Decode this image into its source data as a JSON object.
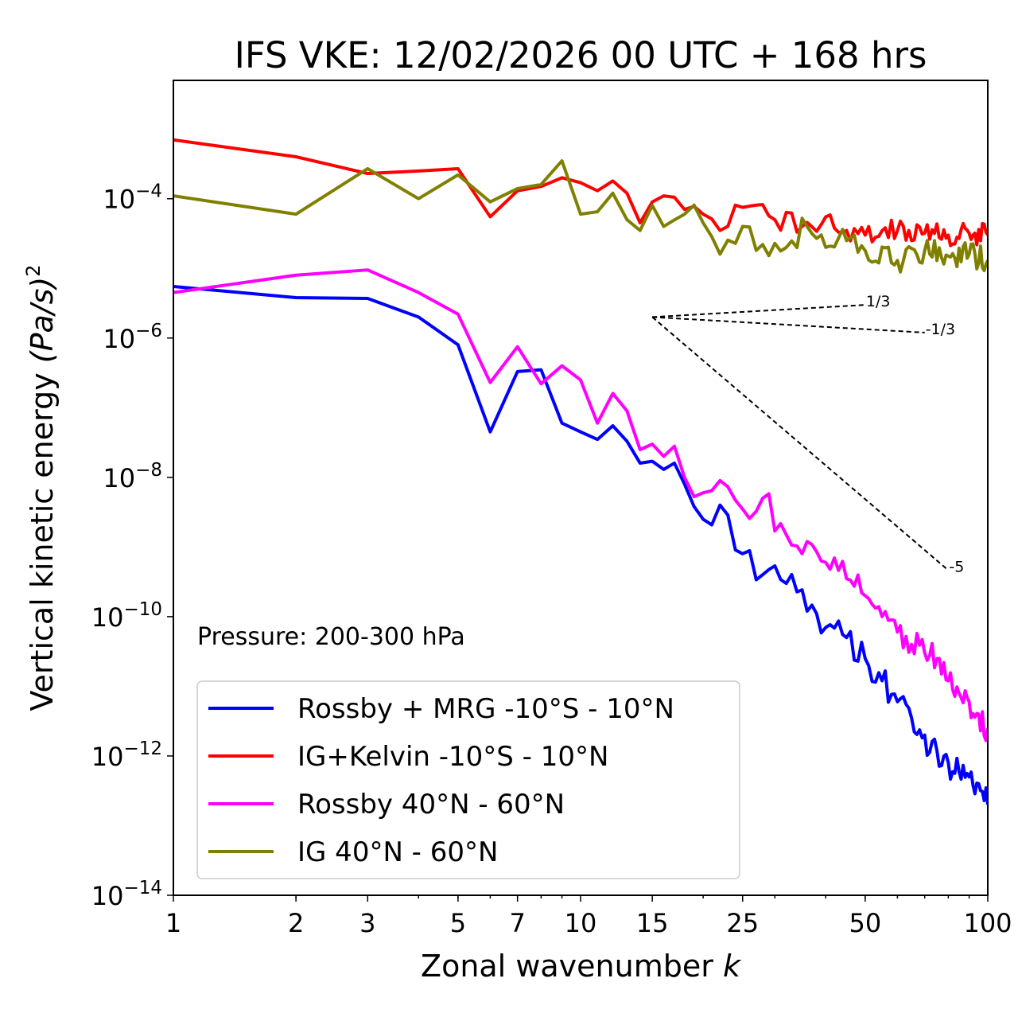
{
  "chart_data": {
    "type": "line",
    "title": "IFS VKE: 12/02/2026 00 UTC + 168 hrs",
    "xlabel": "Zonal wavenumber",
    "xlabel_var": "k",
    "ylabel": "Vertical kinetic energy",
    "ylabel_unit": "(Pa/s)",
    "ylabel_exp": "2",
    "xscale": "log",
    "yscale": "log",
    "xlim": [
      1,
      100
    ],
    "ylim": [
      1e-14,
      0.005
    ],
    "x_ticks": [
      1,
      2,
      3,
      5,
      7,
      10,
      15,
      25,
      50,
      100
    ],
    "x_tick_labels": [
      "1",
      "2",
      "3",
      "5",
      "7",
      "10",
      "15",
      "25",
      "50",
      "100"
    ],
    "y_ticks": [
      {
        "value": 0.0001,
        "base": "10",
        "exp": "−4"
      },
      {
        "value": 1e-06,
        "base": "10",
        "exp": "−6"
      },
      {
        "value": 1e-08,
        "base": "10",
        "exp": "−8"
      },
      {
        "value": 1e-10,
        "base": "10",
        "exp": "−10"
      },
      {
        "value": 1e-12,
        "base": "10",
        "exp": "−12"
      },
      {
        "value": 1e-14,
        "base": "10",
        "exp": "−14"
      }
    ],
    "annotation": "Pressure: 200-300 hPa",
    "legend_position": "lower-left",
    "reference_slopes": [
      {
        "label": "1/3",
        "slope": 0.3333,
        "x0": 15,
        "y0": 2e-06,
        "x1": 50
      },
      {
        "label": "-1/3",
        "slope": -0.3333,
        "x0": 15,
        "y0": 2e-06,
        "x1": 70
      },
      {
        "label": "-5",
        "slope": -5,
        "x0": 15,
        "y0": 2e-06,
        "x1": 80
      }
    ],
    "series": [
      {
        "name": "Rossby + MRG -10°S - 10°N",
        "color": "#0000ff",
        "anchors": [
          [
            1,
            5.5e-06
          ],
          [
            2,
            3.8e-06
          ],
          [
            3,
            3.7e-06
          ],
          [
            4,
            2e-06
          ],
          [
            5,
            8e-07
          ],
          [
            6,
            4.5e-08
          ],
          [
            7,
            3.3e-07
          ],
          [
            8,
            3.5e-07
          ],
          [
            9,
            6e-08
          ],
          [
            10,
            4.5e-08
          ],
          [
            11,
            3.5e-08
          ],
          [
            12,
            5.5e-08
          ],
          [
            13,
            3.3e-08
          ],
          [
            14,
            1.6e-08
          ],
          [
            15,
            1.7e-08
          ],
          [
            16,
            1.3e-08
          ],
          [
            17,
            1.6e-08
          ],
          [
            18,
            8e-09
          ],
          [
            20,
            2.5e-09
          ],
          [
            22,
            4e-09
          ],
          [
            25,
            8e-10
          ],
          [
            28,
            4e-10
          ],
          [
            32,
            3e-10
          ],
          [
            36,
            1.2e-10
          ],
          [
            40,
            7e-11
          ],
          [
            45,
            5e-11
          ],
          [
            50,
            2.5e-11
          ],
          [
            55,
            1.2e-11
          ],
          [
            60,
            6e-12
          ],
          [
            65,
            3.5e-12
          ],
          [
            70,
            2e-12
          ],
          [
            75,
            1.2e-12
          ],
          [
            80,
            8e-13
          ],
          [
            85,
            6e-13
          ],
          [
            90,
            5e-13
          ],
          [
            95,
            4e-13
          ],
          [
            100,
            2e-13
          ]
        ],
        "noise": 0.25
      },
      {
        "name": "IG+Kelvin -10°S - 10°N",
        "color": "#ff0000",
        "anchors": [
          [
            1,
            0.0007
          ],
          [
            2,
            0.0004
          ],
          [
            3,
            0.00023
          ],
          [
            4,
            0.00025
          ],
          [
            5,
            0.00027
          ],
          [
            6,
            5.5e-05
          ],
          [
            7,
            0.00013
          ],
          [
            8,
            0.00015
          ],
          [
            9,
            0.0002
          ],
          [
            10,
            0.00017
          ],
          [
            11,
            0.00013
          ],
          [
            12,
            0.00018
          ],
          [
            13,
            0.00012
          ],
          [
            14,
            4.5e-05
          ],
          [
            15,
            9e-05
          ],
          [
            16,
            0.00011
          ],
          [
            18,
            7e-05
          ],
          [
            20,
            6e-05
          ],
          [
            22,
            3.5e-05
          ],
          [
            25,
            7.5e-05
          ],
          [
            30,
            5e-05
          ],
          [
            35,
            4e-05
          ],
          [
            40,
            5.5e-05
          ],
          [
            45,
            3.5e-05
          ],
          [
            50,
            3e-05
          ],
          [
            60,
            3.5e-05
          ],
          [
            70,
            3.2e-05
          ],
          [
            80,
            3e-05
          ],
          [
            90,
            3.2e-05
          ],
          [
            100,
            3e-05
          ]
        ],
        "noise": 0.16
      },
      {
        "name": "Rossby 40°N - 60°N",
        "color": "#ff00ff",
        "anchors": [
          [
            1,
            4.5e-06
          ],
          [
            2,
            8e-06
          ],
          [
            3,
            9.5e-06
          ],
          [
            4,
            4.5e-06
          ],
          [
            5,
            2.2e-06
          ],
          [
            6,
            2.3e-07
          ],
          [
            7,
            7.5e-07
          ],
          [
            8,
            2.2e-07
          ],
          [
            9,
            4e-07
          ],
          [
            10,
            2.5e-07
          ],
          [
            11,
            6e-08
          ],
          [
            12,
            1.6e-07
          ],
          [
            13,
            9e-08
          ],
          [
            14,
            2.5e-08
          ],
          [
            15,
            3e-08
          ],
          [
            16,
            2e-08
          ],
          [
            17,
            2.8e-08
          ],
          [
            18,
            1e-08
          ],
          [
            20,
            6e-09
          ],
          [
            22,
            9e-09
          ],
          [
            25,
            3.5e-09
          ],
          [
            28,
            5e-09
          ],
          [
            32,
            1.5e-09
          ],
          [
            36,
            1.2e-09
          ],
          [
            40,
            6e-10
          ],
          [
            45,
            3.5e-10
          ],
          [
            50,
            2e-10
          ],
          [
            55,
            1e-10
          ],
          [
            60,
            6e-11
          ],
          [
            65,
            4e-11
          ],
          [
            70,
            3e-11
          ],
          [
            75,
            2.5e-11
          ],
          [
            80,
            1.2e-11
          ],
          [
            85,
            8e-12
          ],
          [
            90,
            6e-12
          ],
          [
            95,
            4e-12
          ],
          [
            100,
            2.5e-12
          ]
        ],
        "noise": 0.22
      },
      {
        "name": "IG 40°N - 60°N",
        "color": "#808000",
        "anchors": [
          [
            1,
            0.00011
          ],
          [
            2,
            6e-05
          ],
          [
            3,
            0.00027
          ],
          [
            4,
            0.0001
          ],
          [
            5,
            0.00022
          ],
          [
            6,
            9e-05
          ],
          [
            7,
            0.00014
          ],
          [
            8,
            0.00016
          ],
          [
            9,
            0.00035
          ],
          [
            10,
            6e-05
          ],
          [
            11,
            6.5e-05
          ],
          [
            12,
            0.00012
          ],
          [
            13,
            5e-05
          ],
          [
            14,
            3.5e-05
          ],
          [
            15,
            8e-05
          ],
          [
            16,
            4e-05
          ],
          [
            18,
            6e-05
          ],
          [
            20,
            4.5e-05
          ],
          [
            22,
            1.6e-05
          ],
          [
            25,
            4e-05
          ],
          [
            28,
            2.2e-05
          ],
          [
            32,
            2e-05
          ],
          [
            36,
            4e-05
          ],
          [
            40,
            2e-05
          ],
          [
            45,
            2.5e-05
          ],
          [
            50,
            1.8e-05
          ],
          [
            60,
            1.3e-05
          ],
          [
            70,
            1.8e-05
          ],
          [
            80,
            1.5e-05
          ],
          [
            90,
            1.6e-05
          ],
          [
            100,
            1.3e-05
          ]
        ],
        "noise": 0.2
      }
    ]
  }
}
